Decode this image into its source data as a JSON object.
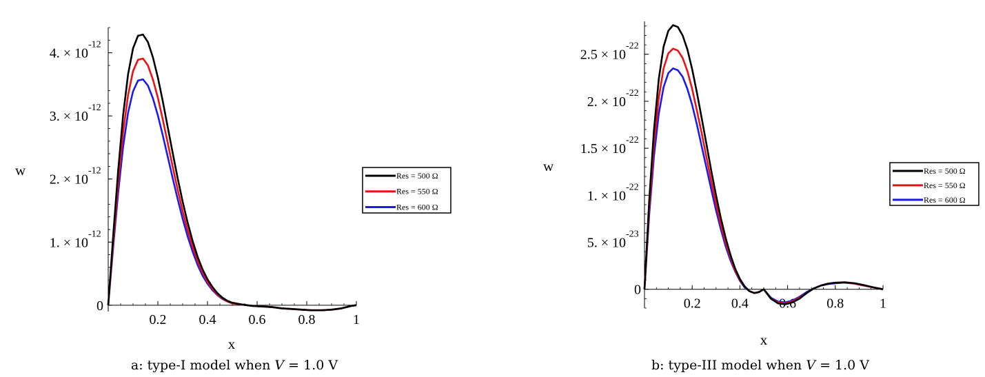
{
  "colors": {
    "res_500": "#000000",
    "res_550": "#ee1111",
    "res_600": "#1a1aee"
  },
  "chart_data": [
    {
      "type": "line",
      "caption": "a: type-I model when V = 1.0 V",
      "caption_prefix": "a: type-I model when ",
      "caption_var": "V",
      "caption_suffix": " = 1.0 V",
      "xlabel": "x",
      "ylabel": "w",
      "xlim": [
        0,
        1
      ],
      "ylim": [
        -1e-13,
        4.4e-12
      ],
      "x_ticks": [
        {
          "value": 0.2,
          "label": "0.2"
        },
        {
          "value": 0.4,
          "label": "0.4"
        },
        {
          "value": 0.6,
          "label": "0.6"
        },
        {
          "value": 0.8,
          "label": "0.8"
        },
        {
          "value": 1.0,
          "label": "1"
        }
      ],
      "y_ticks": [
        {
          "value": 0,
          "mant": "0",
          "exp": ""
        },
        {
          "value": 1e-12,
          "mant": "1. × 10",
          "exp": "-12"
        },
        {
          "value": 2e-12,
          "mant": "2. × 10",
          "exp": "-12"
        },
        {
          "value": 3e-12,
          "mant": "3. × 10",
          "exp": "-12"
        },
        {
          "value": 4e-12,
          "mant": "4. × 10",
          "exp": "-12"
        }
      ],
      "legend_position": "right",
      "x": [
        0,
        0.02,
        0.04,
        0.06,
        0.08,
        0.1,
        0.12,
        0.14,
        0.16,
        0.18,
        0.2,
        0.22,
        0.24,
        0.26,
        0.28,
        0.3,
        0.32,
        0.34,
        0.36,
        0.38,
        0.4,
        0.42,
        0.44,
        0.46,
        0.48,
        0.5,
        0.54,
        0.58,
        0.62,
        0.66,
        0.7,
        0.74,
        0.78,
        0.82,
        0.86,
        0.9,
        0.94,
        0.98,
        1.0
      ],
      "series": [
        {
          "name": "Res = 500 Ω",
          "color_key": "res_500",
          "values": [
            0,
            1.1e-12,
            2.13e-12,
            3.01e-12,
            3.66e-12,
            4.07e-12,
            4.27e-12,
            4.29e-12,
            4.17e-12,
            3.93e-12,
            3.61e-12,
            3.23e-12,
            2.82e-12,
            2.41e-12,
            2.01e-12,
            1.64e-12,
            1.31e-12,
            1.02e-12,
            7.7e-13,
            5.7e-13,
            4.1e-13,
            2.9e-13,
            1.9e-13,
            1.2e-13,
            7e-14,
            4e-14,
            1e-14,
            -1e-14,
            -2e-14,
            -3e-14,
            -5e-14,
            -6e-14,
            -7e-14,
            -8e-14,
            -8e-14,
            -7e-14,
            -5e-14,
            -1e-14,
            0
          ]
        },
        {
          "name": "Res = 550 Ω",
          "color_key": "res_550",
          "values": [
            0,
            1e-12,
            1.94e-12,
            2.74e-12,
            3.33e-12,
            3.71e-12,
            3.89e-12,
            3.91e-12,
            3.8e-12,
            3.58e-12,
            3.29e-12,
            2.94e-12,
            2.57e-12,
            2.19e-12,
            1.83e-12,
            1.49e-12,
            1.19e-12,
            9.3e-13,
            7e-13,
            5.2e-13,
            3.7e-13,
            2.6e-13,
            1.7e-13,
            1.1e-13,
            6e-14,
            3e-14,
            1e-14,
            -1e-14,
            -2e-14,
            -3e-14,
            -5e-14,
            -6e-14,
            -7e-14,
            -8e-14,
            -8e-14,
            -7e-14,
            -5e-14,
            -1e-14,
            0
          ]
        },
        {
          "name": "Res = 600 Ω",
          "color_key": "res_600",
          "values": [
            0,
            9.2e-13,
            1.78e-12,
            2.51e-12,
            3.05e-12,
            3.39e-12,
            3.56e-12,
            3.58e-12,
            3.48e-12,
            3.28e-12,
            3.01e-12,
            2.69e-12,
            2.35e-12,
            2.01e-12,
            1.68e-12,
            1.37e-12,
            1.09e-12,
            8.5e-13,
            6.4e-13,
            4.7e-13,
            3.4e-13,
            2.4e-13,
            1.6e-13,
            1e-13,
            6e-14,
            3e-14,
            1e-14,
            -1e-14,
            -2e-14,
            -3e-14,
            -5e-14,
            -6e-14,
            -7e-14,
            -8e-14,
            -8e-14,
            -7e-14,
            -5e-14,
            -1e-14,
            0
          ]
        }
      ]
    },
    {
      "type": "line",
      "caption": "b: type-III model when V = 1.0 V",
      "caption_prefix": "b: type-III model when ",
      "caption_var": "V",
      "caption_suffix": " = 1.0 V",
      "xlabel": "x",
      "ylabel": "w",
      "xlim": [
        0,
        1
      ],
      "ylim": [
        -2e-23,
        2.85e-22
      ],
      "x_ticks": [
        {
          "value": 0.2,
          "label": "0.2"
        },
        {
          "value": 0.4,
          "label": "0.4"
        },
        {
          "value": 0.6,
          "label": "0.6"
        },
        {
          "value": 0.8,
          "label": "0.8"
        },
        {
          "value": 1.0,
          "label": "1"
        }
      ],
      "y_ticks": [
        {
          "value": 0,
          "mant": "0",
          "exp": ""
        },
        {
          "value": 5e-23,
          "mant": "5. × 10",
          "exp": "-23"
        },
        {
          "value": 1e-22,
          "mant": "1. × 10",
          "exp": "-22"
        },
        {
          "value": 1.5e-22,
          "mant": "1.5 × 10",
          "exp": "-22"
        },
        {
          "value": 2e-22,
          "mant": "2. × 10",
          "exp": "-22"
        },
        {
          "value": 2.5e-22,
          "mant": "2.5 × 10",
          "exp": "-22"
        }
      ],
      "legend_position": "right",
      "x": [
        0,
        0.02,
        0.04,
        0.06,
        0.08,
        0.1,
        0.12,
        0.14,
        0.16,
        0.18,
        0.2,
        0.22,
        0.24,
        0.26,
        0.28,
        0.3,
        0.32,
        0.34,
        0.36,
        0.38,
        0.4,
        0.42,
        0.44,
        0.46,
        0.48,
        0.5,
        0.53,
        0.56,
        0.59,
        0.62,
        0.65,
        0.68,
        0.71,
        0.74,
        0.77,
        0.8,
        0.84,
        0.88,
        0.92,
        0.96,
        1.0
      ],
      "series": [
        {
          "name": "Res = 500 Ω",
          "color_key": "res_500",
          "values": [
            0,
            9.5e-23,
            1.7e-22,
            2.24e-22,
            2.58e-22,
            2.75e-22,
            2.81e-22,
            2.79e-22,
            2.7e-22,
            2.55e-22,
            2.34e-22,
            2.09e-22,
            1.82e-22,
            1.54e-22,
            1.26e-22,
            1e-22,
            7.6e-23,
            5.5e-23,
            3.7e-23,
            2.2e-23,
            1.1e-23,
            3e-24,
            -2e-24,
            -4e-24,
            -3e-24,
            0,
            -1e-23,
            -1.5e-23,
            -1.6e-23,
            -1.4e-23,
            -1e-23,
            -4e-24,
            1e-24,
            4e-24,
            6e-24,
            7e-24,
            7.5e-24,
            6.5e-24,
            4.5e-24,
            2e-24,
            0
          ]
        },
        {
          "name": "Res = 550 Ω",
          "color_key": "res_550",
          "values": [
            0,
            8.7e-23,
            1.55e-22,
            2.04e-22,
            2.35e-22,
            2.51e-22,
            2.56e-22,
            2.54e-22,
            2.46e-22,
            2.32e-22,
            2.13e-22,
            1.9e-22,
            1.66e-22,
            1.4e-22,
            1.15e-22,
            9.1e-23,
            6.9e-23,
            5e-23,
            3.4e-23,
            2e-23,
            1e-23,
            3e-24,
            -2e-24,
            -4e-24,
            -3e-24,
            0,
            -1e-23,
            -1.4e-23,
            -1.5e-23,
            -1.3e-23,
            -9e-24,
            -4e-24,
            1e-24,
            4e-24,
            6e-24,
            7e-24,
            7e-24,
            6e-24,
            4e-24,
            2e-24,
            0
          ]
        },
        {
          "name": "Res = 600 Ω",
          "color_key": "res_600",
          "values": [
            0,
            8e-23,
            1.42e-22,
            1.87e-22,
            2.15e-22,
            2.3e-22,
            2.35e-22,
            2.33e-22,
            2.26e-22,
            2.13e-22,
            1.96e-22,
            1.75e-22,
            1.52e-22,
            1.29e-22,
            1.06e-22,
            8.4e-23,
            6.4e-23,
            4.6e-23,
            3.1e-23,
            1.9e-23,
            9e-24,
            2e-24,
            -2e-24,
            -4e-24,
            -3e-24,
            0,
            -9e-24,
            -1.3e-23,
            -1.4e-23,
            -1.2e-23,
            -8e-24,
            -3e-24,
            1e-24,
            4e-24,
            5.5e-24,
            6.5e-24,
            7e-24,
            6e-24,
            4e-24,
            2e-24,
            0
          ]
        }
      ]
    }
  ]
}
